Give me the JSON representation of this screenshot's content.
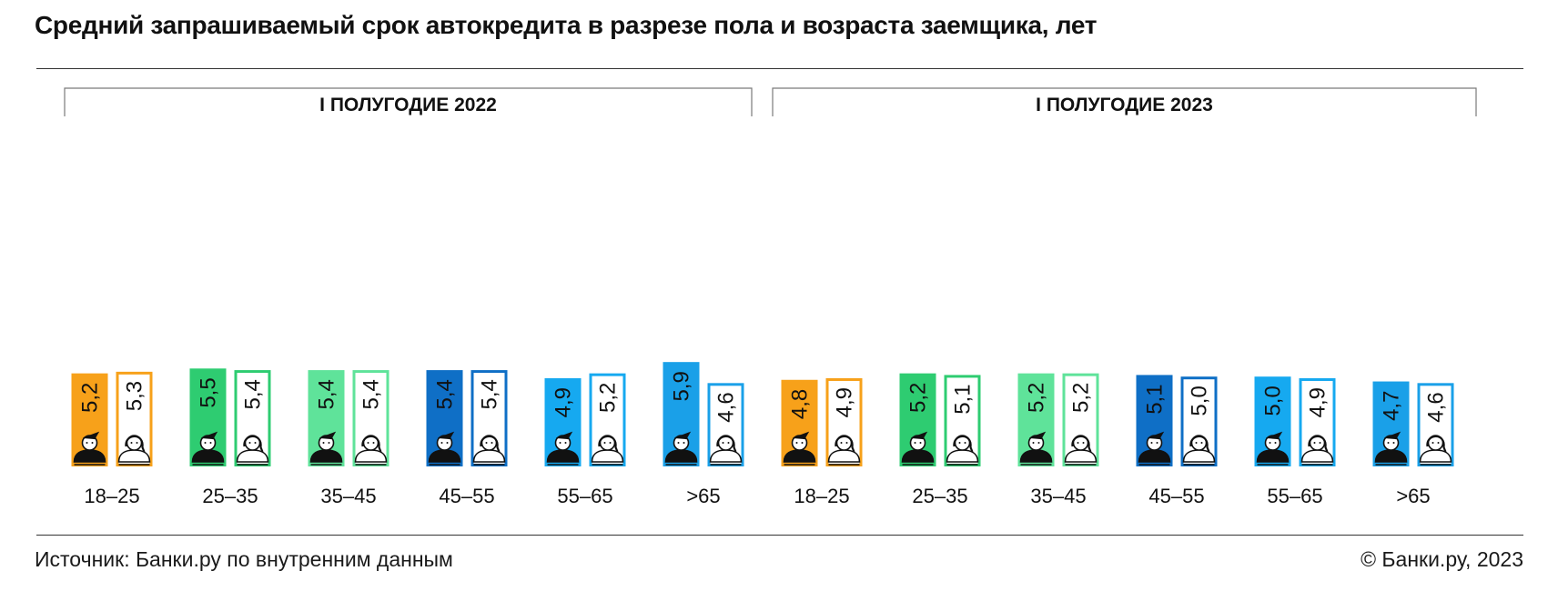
{
  "title": "Средний запрашиваемый срок автокредита в разрезе пола и возраста заемщика, лет",
  "footer": {
    "source": "Источник: Банки.ру по внутренним данным",
    "copyright": "© Банки.ру, 2023"
  },
  "chart_data": {
    "type": "bar",
    "title": "Средний запрашиваемый срок автокредита в разрезе пола и возраста заемщика, лет",
    "xlabel": "",
    "ylabel": "",
    "ylim": [
      0,
      6
    ],
    "grid": false,
    "groups": [
      {
        "period": "I ПОЛУГОДИЕ 2022",
        "categories": [
          "18–25",
          "25–35",
          "35–45",
          "45–55",
          "55–65",
          ">65"
        ],
        "series": [
          {
            "values": [
              5.2,
              5.5,
              5.4,
              5.4,
              4.9,
              5.9
            ],
            "labels": [
              "5,2",
              "5,5",
              "5,4",
              "5,4",
              "4,9",
              "5,9"
            ]
          },
          {
            "values": [
              5.3,
              5.4,
              5.4,
              5.4,
              5.2,
              4.6
            ],
            "labels": [
              "5,3",
              "5,4",
              "5,4",
              "5,4",
              "5,2",
              "4,6"
            ]
          }
        ]
      },
      {
        "period": "I ПОЛУГОДИЕ 2023",
        "categories": [
          "18–25",
          "25–35",
          "35–45",
          "45–55",
          "55–65",
          ">65"
        ],
        "series": [
          {
            "values": [
              4.8,
              5.2,
              5.2,
              5.1,
              5.0,
              4.7
            ],
            "labels": [
              "4,8",
              "5,2",
              "5,2",
              "5,1",
              "5,0",
              "4,7"
            ]
          },
          {
            "values": [
              4.9,
              5.1,
              5.2,
              5.0,
              4.9,
              4.6
            ],
            "labels": [
              "4,9",
              "5,1",
              "5,2",
              "5,0",
              "4,9",
              "4,6"
            ]
          }
        ]
      }
    ],
    "category_colors": [
      "#f7a11a",
      "#2ecc71",
      "#5fe39a",
      "#0f6fc6",
      "#16a9f0",
      "#1aa0e8"
    ],
    "icons": [
      "man-icon",
      "woman-icon"
    ]
  }
}
